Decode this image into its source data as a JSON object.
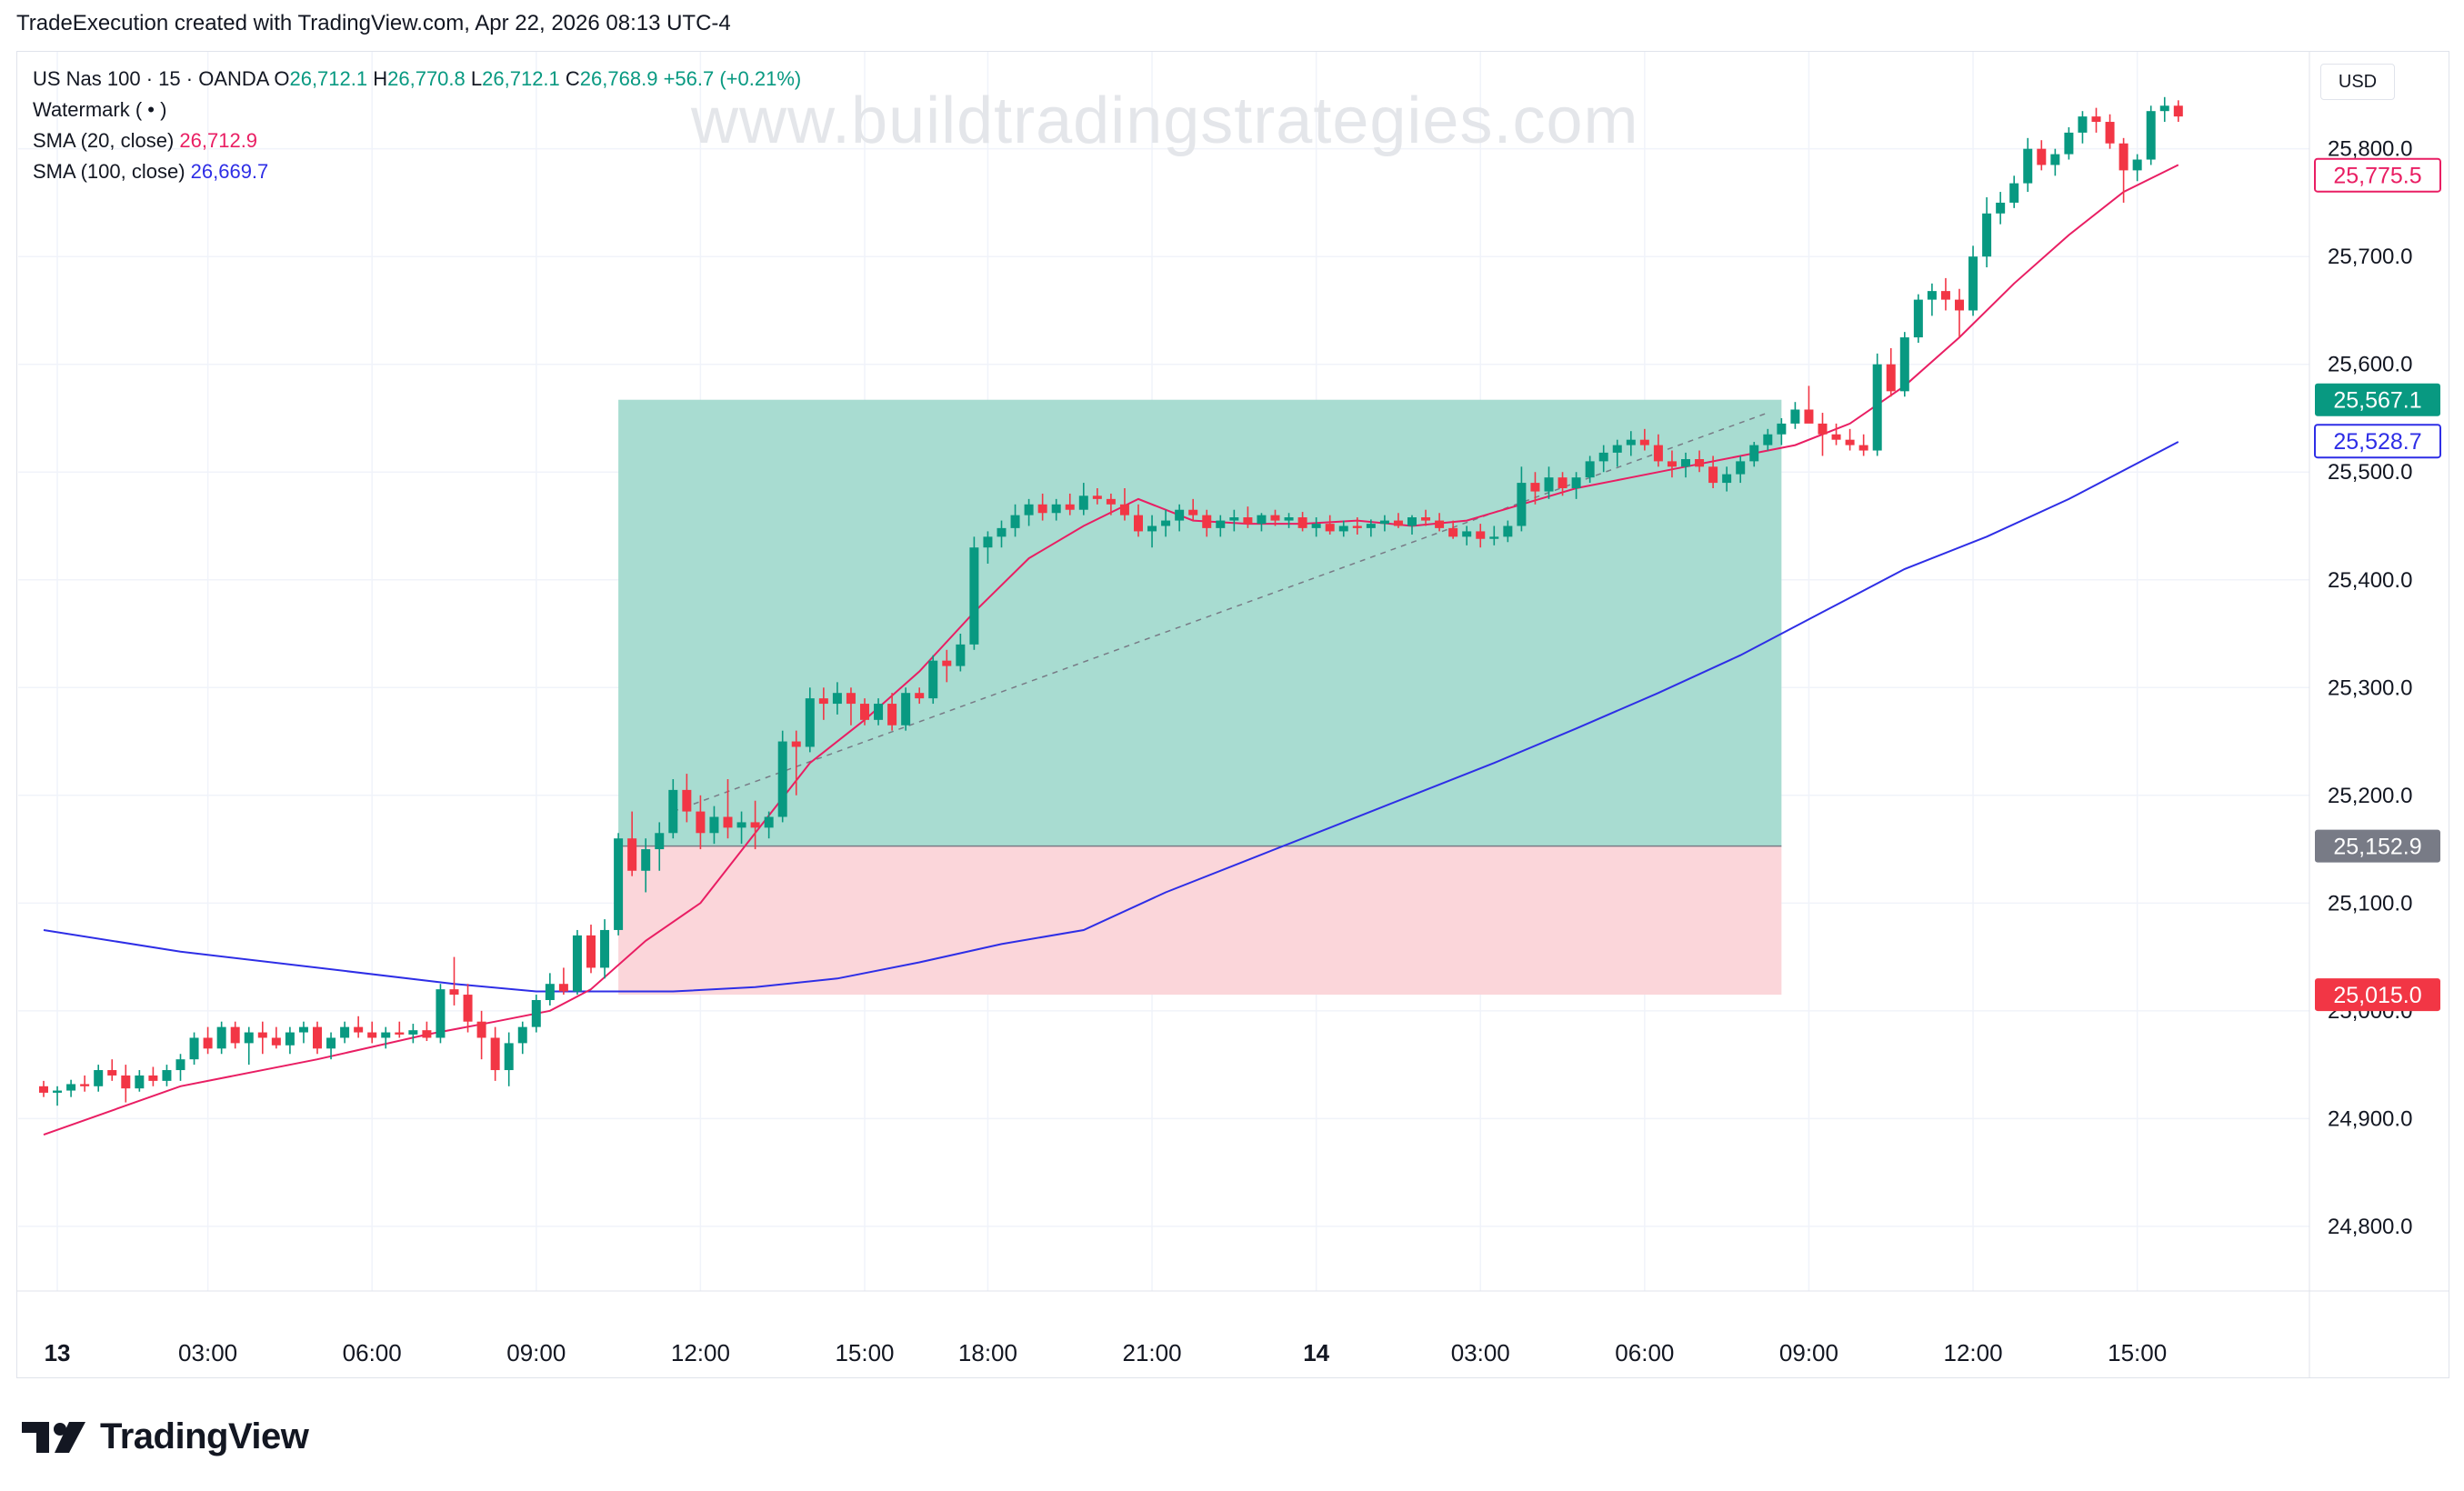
{
  "header": {
    "title": "TradeExecution created with TradingView.com, Apr 22, 2026 08:13 UTC-4"
  },
  "legend": {
    "symbol": "US Nas 100 · 15 · OANDA",
    "o_label": "O",
    "o_value": "26,712.1",
    "h_label": "H",
    "h_value": "26,770.8",
    "l_label": "L",
    "l_value": "26,712.1",
    "c_label": "C",
    "c_value": "26,768.9",
    "change": "+56.7 (+0.21%)",
    "watermark_row": "Watermark ( • )",
    "sma20_label": "SMA (20, close)",
    "sma20_value": "26,712.9",
    "sma100_label": "SMA (100, close)",
    "sma100_value": "26,669.7"
  },
  "watermark": "www.buildtradingstrategies.com",
  "currency": "USD",
  "logo": {
    "text": "TradingView",
    "icon": "tradingview-logo-icon"
  },
  "colors": {
    "up": "#089981",
    "down": "#f23645",
    "sma20": "#e91e63",
    "sma100": "#2e2ee6",
    "profit_zone": "#a8dcd1",
    "loss_zone": "#fbd6da"
  },
  "chart_data": {
    "type": "candlestick",
    "ylim": [
      24740,
      25890
    ],
    "y_ticks": [
      "24,800.0",
      "24,900.0",
      "25,000.0",
      "25,100.0",
      "25,200.0",
      "25,300.0",
      "25,400.0",
      "25,500.0",
      "25,600.0",
      "25,700.0",
      "25,800.0"
    ],
    "y_tick_values": [
      24800,
      24900,
      25000,
      25100,
      25200,
      25300,
      25400,
      25500,
      25600,
      25700,
      25800
    ],
    "x_ticks": [
      {
        "label": "13",
        "bar": 1
      },
      {
        "label": "03:00",
        "bar": 12
      },
      {
        "label": "06:00",
        "bar": 24
      },
      {
        "label": "09:00",
        "bar": 36
      },
      {
        "label": "12:00",
        "bar": 48
      },
      {
        "label": "15:00",
        "bar": 60
      },
      {
        "label": "18:00",
        "bar": 69
      },
      {
        "label": "21:00",
        "bar": 81
      },
      {
        "label": "14",
        "bar": 93
      },
      {
        "label": "03:00",
        "bar": 105
      },
      {
        "label": "06:00",
        "bar": 117
      },
      {
        "label": "09:00",
        "bar": 129
      },
      {
        "label": "12:00",
        "bar": 141
      },
      {
        "label": "15:00",
        "bar": 153
      }
    ],
    "candles": [
      [
        24930,
        24935,
        24920,
        24924
      ],
      [
        24924,
        24930,
        24912,
        24926
      ],
      [
        24926,
        24936,
        24920,
        24932
      ],
      [
        24932,
        24940,
        24925,
        24930
      ],
      [
        24930,
        24950,
        24925,
        24945
      ],
      [
        24945,
        24955,
        24935,
        24940
      ],
      [
        24940,
        24950,
        24915,
        24928
      ],
      [
        24928,
        24945,
        24925,
        24940
      ],
      [
        24940,
        24948,
        24930,
        24935
      ],
      [
        24935,
        24950,
        24930,
        24945
      ],
      [
        24945,
        24960,
        24935,
        24955
      ],
      [
        24955,
        24980,
        24950,
        24975
      ],
      [
        24975,
        24985,
        24960,
        24965
      ],
      [
        24965,
        24990,
        24960,
        24985
      ],
      [
        24985,
        24990,
        24965,
        24970
      ],
      [
        24970,
        24985,
        24950,
        24980
      ],
      [
        24980,
        24990,
        24960,
        24975
      ],
      [
        24975,
        24985,
        24965,
        24968
      ],
      [
        24968,
        24985,
        24960,
        24980
      ],
      [
        24980,
        24990,
        24970,
        24985
      ],
      [
        24985,
        24990,
        24960,
        24965
      ],
      [
        24965,
        24980,
        24955,
        24975
      ],
      [
        24975,
        24990,
        24970,
        24985
      ],
      [
        24985,
        24995,
        24975,
        24980
      ],
      [
        24980,
        24990,
        24970,
        24975
      ],
      [
        24975,
        24985,
        24965,
        24980
      ],
      [
        24980,
        24990,
        24975,
        24978
      ],
      [
        24978,
        24988,
        24970,
        24982
      ],
      [
        24982,
        24990,
        24972,
        24975
      ],
      [
        24975,
        25025,
        24970,
        25020
      ],
      [
        25020,
        25050,
        25005,
        25015
      ],
      [
        25015,
        25025,
        24980,
        24990
      ],
      [
        24990,
        25000,
        24955,
        24975
      ],
      [
        24975,
        24985,
        24935,
        24945
      ],
      [
        24945,
        24980,
        24930,
        24970
      ],
      [
        24970,
        24990,
        24960,
        24985
      ],
      [
        24985,
        25015,
        24980,
        25010
      ],
      [
        25010,
        25035,
        25005,
        25025
      ],
      [
        25025,
        25040,
        25015,
        25018
      ],
      [
        25018,
        25075,
        25015,
        25070
      ],
      [
        25070,
        25080,
        25035,
        25040
      ],
      [
        25040,
        25085,
        25030,
        25075
      ],
      [
        25075,
        25165,
        25070,
        25160
      ],
      [
        25160,
        25185,
        25125,
        25130
      ],
      [
        25130,
        25160,
        25110,
        25150
      ],
      [
        25150,
        25175,
        25130,
        25165
      ],
      [
        25165,
        25215,
        25160,
        25205
      ],
      [
        25205,
        25220,
        25175,
        25185
      ],
      [
        25185,
        25200,
        25150,
        25165
      ],
      [
        25165,
        25190,
        25155,
        25180
      ],
      [
        25180,
        25215,
        25160,
        25170
      ],
      [
        25170,
        25185,
        25155,
        25175
      ],
      [
        25175,
        25195,
        25150,
        25170
      ],
      [
        25170,
        25185,
        25160,
        25180
      ],
      [
        25180,
        25260,
        25175,
        25250
      ],
      [
        25250,
        25260,
        25200,
        25245
      ],
      [
        25245,
        25300,
        25240,
        25290
      ],
      [
        25290,
        25300,
        25270,
        25285
      ],
      [
        25285,
        25305,
        25275,
        25295
      ],
      [
        25295,
        25300,
        25265,
        25285
      ],
      [
        25285,
        25290,
        25265,
        25270
      ],
      [
        25270,
        25290,
        25265,
        25285
      ],
      [
        25285,
        25295,
        25260,
        25265
      ],
      [
        25265,
        25300,
        25260,
        25295
      ],
      [
        25295,
        25300,
        25285,
        25290
      ],
      [
        25290,
        25330,
        25285,
        25325
      ],
      [
        25325,
        25335,
        25305,
        25320
      ],
      [
        25320,
        25350,
        25315,
        25340
      ],
      [
        25340,
        25440,
        25335,
        25430
      ],
      [
        25430,
        25445,
        25415,
        25440
      ],
      [
        25440,
        25455,
        25430,
        25448
      ],
      [
        25448,
        25470,
        25440,
        25460
      ],
      [
        25460,
        25475,
        25450,
        25470
      ],
      [
        25470,
        25480,
        25455,
        25462
      ],
      [
        25462,
        25475,
        25455,
        25470
      ],
      [
        25470,
        25480,
        25460,
        25465
      ],
      [
        25465,
        25490,
        25460,
        25478
      ],
      [
        25478,
        25485,
        25470,
        25475
      ],
      [
        25475,
        25480,
        25460,
        25470
      ],
      [
        25470,
        25485,
        25455,
        25460
      ],
      [
        25460,
        25470,
        25440,
        25445
      ],
      [
        25445,
        25460,
        25430,
        25450
      ],
      [
        25450,
        25465,
        25440,
        25455
      ],
      [
        25455,
        25470,
        25445,
        25465
      ],
      [
        25465,
        25475,
        25455,
        25460
      ],
      [
        25460,
        25465,
        25440,
        25448
      ],
      [
        25448,
        25460,
        25440,
        25455
      ],
      [
        25455,
        25465,
        25445,
        25458
      ],
      [
        25458,
        25468,
        25448,
        25452
      ],
      [
        25452,
        25462,
        25445,
        25460
      ],
      [
        25460,
        25465,
        25450,
        25455
      ],
      [
        25455,
        25462,
        25448,
        25458
      ],
      [
        25458,
        25463,
        25445,
        25448
      ],
      [
        25448,
        25458,
        25440,
        25452
      ],
      [
        25452,
        25460,
        25442,
        25445
      ],
      [
        25445,
        25455,
        25440,
        25450
      ],
      [
        25450,
        25458,
        25442,
        25448
      ],
      [
        25448,
        25456,
        25440,
        25452
      ],
      [
        25452,
        25460,
        25445,
        25455
      ],
      [
        25455,
        25462,
        25448,
        25450
      ],
      [
        25450,
        25460,
        25442,
        25458
      ],
      [
        25458,
        25465,
        25450,
        25455
      ],
      [
        25455,
        25462,
        25445,
        25448
      ],
      [
        25448,
        25455,
        25438,
        25440
      ],
      [
        25440,
        25450,
        25432,
        25445
      ],
      [
        25445,
        25452,
        25430,
        25438
      ],
      [
        25438,
        25450,
        25432,
        25440
      ],
      [
        25440,
        25455,
        25435,
        25450
      ],
      [
        25450,
        25505,
        25445,
        25490
      ],
      [
        25490,
        25500,
        25470,
        25482
      ],
      [
        25482,
        25505,
        25475,
        25495
      ],
      [
        25495,
        25500,
        25478,
        25485
      ],
      [
        25485,
        25500,
        25475,
        25495
      ],
      [
        25495,
        25515,
        25490,
        25510
      ],
      [
        25510,
        25525,
        25500,
        25518
      ],
      [
        25518,
        25530,
        25505,
        25525
      ],
      [
        25525,
        25538,
        25515,
        25530
      ],
      [
        25530,
        25540,
        25520,
        25525
      ],
      [
        25525,
        25535,
        25505,
        25510
      ],
      [
        25510,
        25520,
        25495,
        25505
      ],
      [
        25505,
        25518,
        25495,
        25512
      ],
      [
        25512,
        25520,
        25500,
        25505
      ],
      [
        25505,
        25515,
        25485,
        25490
      ],
      [
        25490,
        25505,
        25482,
        25498
      ],
      [
        25498,
        25515,
        25490,
        25510
      ],
      [
        25510,
        25528,
        25505,
        25525
      ],
      [
        25525,
        25540,
        25520,
        25535
      ],
      [
        25535,
        25550,
        25525,
        25545
      ],
      [
        25545,
        25565,
        25540,
        25558
      ],
      [
        25558,
        25580,
        25550,
        25545
      ],
      [
        25545,
        25555,
        25515,
        25535
      ],
      [
        25535,
        25545,
        25525,
        25530
      ],
      [
        25530,
        25540,
        25520,
        25525
      ],
      [
        25525,
        25535,
        25515,
        25520
      ],
      [
        25520,
        25610,
        25515,
        25600
      ],
      [
        25600,
        25615,
        25570,
        25575
      ],
      [
        25575,
        25630,
        25570,
        25625
      ],
      [
        25625,
        25665,
        25620,
        25660
      ],
      [
        25660,
        25675,
        25645,
        25668
      ],
      [
        25668,
        25680,
        25650,
        25660
      ],
      [
        25660,
        25670,
        25625,
        25650
      ],
      [
        25650,
        25710,
        25645,
        25700
      ],
      [
        25700,
        25755,
        25690,
        25740
      ],
      [
        25740,
        25760,
        25730,
        25750
      ],
      [
        25750,
        25775,
        25745,
        25768
      ],
      [
        25768,
        25810,
        25760,
        25800
      ],
      [
        25800,
        25808,
        25780,
        25785
      ],
      [
        25785,
        25800,
        25775,
        25795
      ],
      [
        25795,
        25820,
        25790,
        25815
      ],
      [
        25815,
        25835,
        25805,
        25830
      ],
      [
        25830,
        25838,
        25815,
        25825
      ],
      [
        25825,
        25832,
        25800,
        25805
      ],
      [
        25805,
        25810,
        25750,
        25780
      ],
      [
        25780,
        25795,
        25770,
        25790
      ],
      [
        25790,
        25840,
        25785,
        25835
      ],
      [
        25835,
        25848,
        25825,
        25840
      ],
      [
        25840,
        25845,
        25825,
        25830
      ]
    ],
    "sma20": [
      [
        0,
        24885
      ],
      [
        10,
        24930
      ],
      [
        20,
        24955
      ],
      [
        28,
        24978
      ],
      [
        33,
        24990
      ],
      [
        37,
        25000
      ],
      [
        40,
        25020
      ],
      [
        44,
        25065
      ],
      [
        48,
        25100
      ],
      [
        52,
        25165
      ],
      [
        56,
        25230
      ],
      [
        60,
        25270
      ],
      [
        64,
        25315
      ],
      [
        68,
        25370
      ],
      [
        72,
        25420
      ],
      [
        76,
        25450
      ],
      [
        80,
        25475
      ],
      [
        84,
        25455
      ],
      [
        88,
        25452
      ],
      [
        92,
        25452
      ],
      [
        96,
        25455
      ],
      [
        100,
        25450
      ],
      [
        104,
        25455
      ],
      [
        108,
        25470
      ],
      [
        112,
        25485
      ],
      [
        116,
        25495
      ],
      [
        120,
        25505
      ],
      [
        124,
        25515
      ],
      [
        128,
        25525
      ],
      [
        132,
        25545
      ],
      [
        136,
        25580
      ],
      [
        140,
        25625
      ],
      [
        144,
        25675
      ],
      [
        148,
        25720
      ],
      [
        152,
        25760
      ],
      [
        156,
        25785
      ]
    ],
    "sma100": [
      [
        0,
        25075
      ],
      [
        10,
        25055
      ],
      [
        20,
        25040
      ],
      [
        30,
        25025
      ],
      [
        36,
        25018
      ],
      [
        40,
        25018
      ],
      [
        46,
        25018
      ],
      [
        52,
        25022
      ],
      [
        58,
        25030
      ],
      [
        64,
        25045
      ],
      [
        70,
        25062
      ],
      [
        76,
        25075
      ],
      [
        82,
        25110
      ],
      [
        88,
        25140
      ],
      [
        94,
        25170
      ],
      [
        100,
        25200
      ],
      [
        106,
        25230
      ],
      [
        112,
        25262
      ],
      [
        118,
        25295
      ],
      [
        124,
        25330
      ],
      [
        130,
        25370
      ],
      [
        136,
        25410
      ],
      [
        142,
        25440
      ],
      [
        148,
        25475
      ],
      [
        156,
        25528
      ]
    ],
    "position": {
      "start_bar": 42,
      "end_bar": 127,
      "entry": 25152.9,
      "target": 25567.1,
      "stop": 25015.0,
      "entry_label": "25,152.9",
      "target_label": "25,567.1",
      "stop_label": "25,015.0"
    },
    "dashed_line": {
      "from": [
        46,
        25185
      ],
      "to": [
        126,
        25555
      ]
    },
    "price_labels": [
      {
        "label": "25,775.5",
        "value": 25775.5,
        "style": "outline",
        "color": "#e91e63"
      },
      {
        "label": "25,567.1",
        "value": 25567.1,
        "style": "fill",
        "color": "#089981"
      },
      {
        "label": "25,528.7",
        "value": 25528.7,
        "style": "outline",
        "color": "#2e2ee6"
      },
      {
        "label": "25,152.9",
        "value": 25152.9,
        "style": "fill",
        "color": "#787b86"
      },
      {
        "label": "25,015.0",
        "value": 25015.0,
        "style": "fill",
        "color": "#f23645"
      }
    ]
  }
}
